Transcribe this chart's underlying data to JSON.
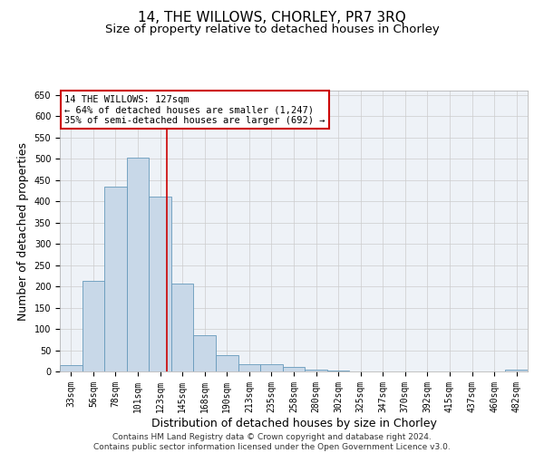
{
  "title_line1": "14, THE WILLOWS, CHORLEY, PR7 3RQ",
  "title_line2": "Size of property relative to detached houses in Chorley",
  "xlabel": "Distribution of detached houses by size in Chorley",
  "ylabel": "Number of detached properties",
  "footer_line1": "Contains HM Land Registry data © Crown copyright and database right 2024.",
  "footer_line2": "Contains public sector information licensed under the Open Government Licence v3.0.",
  "categories": [
    "33sqm",
    "56sqm",
    "78sqm",
    "101sqm",
    "123sqm",
    "145sqm",
    "168sqm",
    "190sqm",
    "213sqm",
    "235sqm",
    "258sqm",
    "280sqm",
    "302sqm",
    "325sqm",
    "347sqm",
    "370sqm",
    "392sqm",
    "415sqm",
    "437sqm",
    "460sqm",
    "482sqm"
  ],
  "values": [
    15,
    212,
    435,
    503,
    410,
    207,
    85,
    38,
    18,
    18,
    10,
    5,
    3,
    1,
    1,
    1,
    1,
    1,
    0,
    0,
    4
  ],
  "bar_color": "#c8d8e8",
  "bar_edge_color": "#6699bb",
  "annotation_line1": "14 THE WILLOWS: 127sqm",
  "annotation_line2": "← 64% of detached houses are smaller (1,247)",
  "annotation_line3": "35% of semi-detached houses are larger (692) →",
  "annotation_box_color": "#ffffff",
  "annotation_box_edge": "#cc0000",
  "vline_color": "#cc0000",
  "vline_x_idx": 4.0,
  "ylim": [
    0,
    660
  ],
  "yticks": [
    0,
    50,
    100,
    150,
    200,
    250,
    300,
    350,
    400,
    450,
    500,
    550,
    600,
    650
  ],
  "grid_color": "#cccccc",
  "bg_color": "#eef2f7",
  "title_fontsize": 11,
  "subtitle_fontsize": 9.5,
  "tick_fontsize": 7,
  "label_fontsize": 9,
  "footer_fontsize": 6.5
}
